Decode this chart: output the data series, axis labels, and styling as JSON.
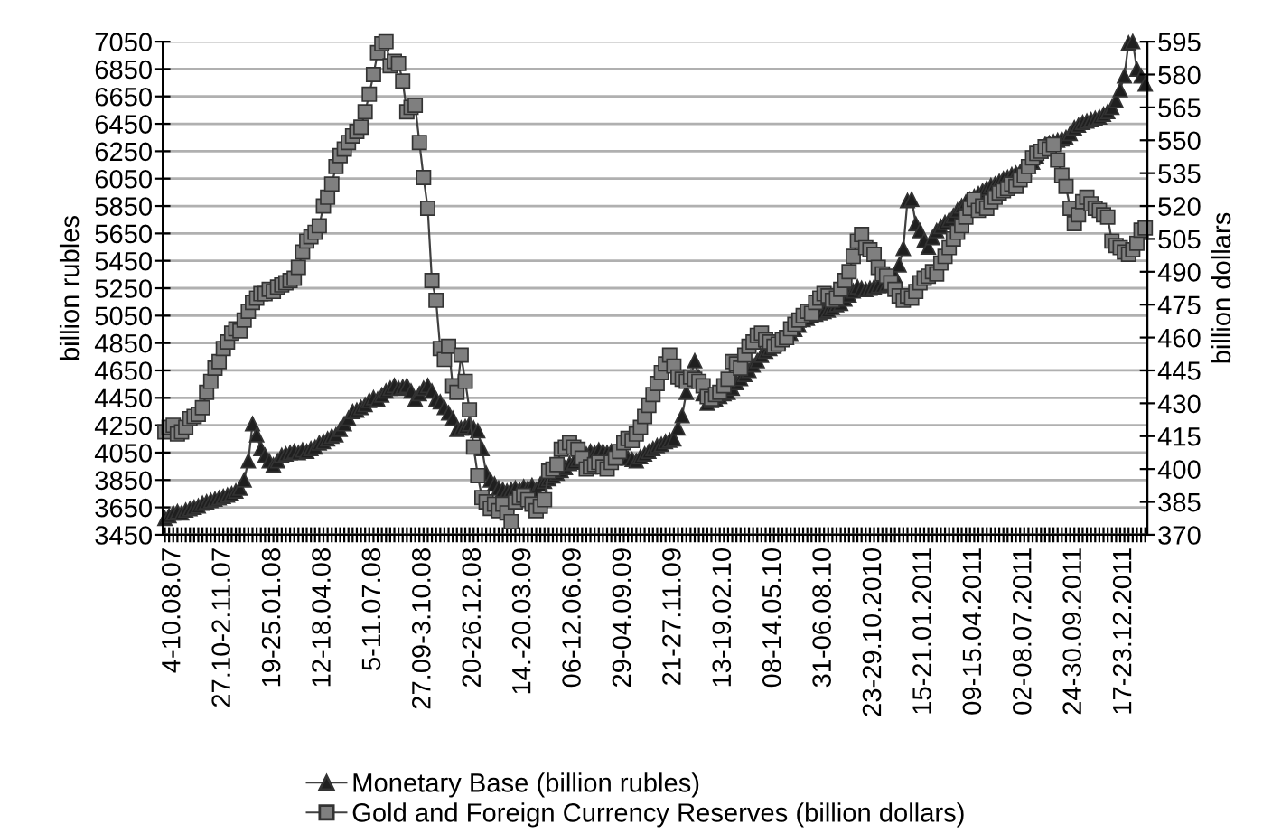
{
  "chart_data": {
    "type": "line",
    "ylabel": "billion rubles",
    "y2label": "billion dollars",
    "categories": [
      null,
      null,
      "4-10.08.07",
      null,
      null,
      null,
      null,
      null,
      null,
      null,
      null,
      null,
      null,
      null,
      "27.10-2.11.07",
      null,
      null,
      null,
      null,
      null,
      null,
      null,
      null,
      null,
      null,
      null,
      "19-25.01.08",
      null,
      null,
      null,
      null,
      null,
      null,
      null,
      null,
      null,
      null,
      null,
      "12-18.04.08",
      null,
      null,
      null,
      null,
      null,
      null,
      null,
      null,
      null,
      null,
      null,
      "5-11.07.08",
      null,
      null,
      null,
      null,
      null,
      null,
      null,
      null,
      null,
      null,
      null,
      "27.09-3.10.08",
      null,
      null,
      null,
      null,
      null,
      null,
      null,
      null,
      null,
      null,
      null,
      "20-26.12.08",
      null,
      null,
      null,
      null,
      null,
      null,
      null,
      null,
      null,
      null,
      null,
      "14.-20.03.09",
      null,
      null,
      null,
      null,
      null,
      null,
      null,
      null,
      null,
      null,
      null,
      "06-12.06.09",
      null,
      null,
      null,
      null,
      null,
      null,
      null,
      null,
      null,
      null,
      null,
      "29-04.09.09",
      null,
      null,
      null,
      null,
      null,
      null,
      null,
      null,
      null,
      null,
      null,
      "21-27.11.09",
      null,
      null,
      null,
      null,
      null,
      null,
      null,
      null,
      null,
      null,
      null,
      "13-19.02.10",
      null,
      null,
      null,
      null,
      null,
      null,
      null,
      null,
      null,
      null,
      null,
      "08-14.05.10",
      null,
      null,
      null,
      null,
      null,
      null,
      null,
      null,
      null,
      null,
      null,
      "31-06.08.10",
      null,
      null,
      null,
      null,
      null,
      null,
      null,
      null,
      null,
      null,
      null,
      "23-29.10.2010",
      null,
      null,
      null,
      null,
      null,
      null,
      null,
      null,
      null,
      null,
      null,
      "15-21.01.2011",
      null,
      null,
      null,
      null,
      null,
      null,
      null,
      null,
      null,
      null,
      null,
      "09-15.04.2011",
      null,
      null,
      null,
      null,
      null,
      null,
      null,
      null,
      null,
      null,
      null,
      "02-08.07.2011",
      null,
      null,
      null,
      null,
      null,
      null,
      null,
      null,
      null,
      null,
      null,
      "24-30.09.2011",
      null,
      null,
      null,
      null,
      null,
      null,
      null,
      null,
      null,
      null,
      null,
      "17-23.12.2011",
      null,
      null,
      null,
      null,
      null
    ],
    "series": [
      {
        "name": "Monetary Base (billion rubles)",
        "color": "#1f1f1f",
        "marker": "triangle",
        "axis": "y",
        "values": [
          3570,
          3590,
          3610,
          3620,
          3610,
          3630,
          3640,
          3650,
          3660,
          3680,
          3690,
          3700,
          3710,
          3720,
          3730,
          3740,
          3750,
          3770,
          3790,
          3850,
          3990,
          4260,
          4180,
          4080,
          4030,
          3990,
          3960,
          3990,
          4030,
          4040,
          4050,
          4060,
          4050,
          4070,
          4060,
          4080,
          4090,
          4120,
          4130,
          4150,
          4170,
          4180,
          4220,
          4260,
          4300,
          4350,
          4360,
          4380,
          4400,
          4430,
          4450,
          4440,
          4470,
          4500,
          4520,
          4540,
          4520,
          4530,
          4540,
          4500,
          4440,
          4480,
          4520,
          4540,
          4500,
          4440,
          4420,
          4380,
          4340,
          4300,
          4220,
          4230,
          4240,
          4260,
          4230,
          4210,
          4080,
          3900,
          3850,
          3820,
          3790,
          3780,
          3770,
          3780,
          3790,
          3780,
          3800,
          3790,
          3810,
          3780,
          3820,
          3840,
          3860,
          3880,
          3900,
          3920,
          3940,
          3970,
          3980,
          4000,
          4020,
          4040,
          4060,
          4050,
          4070,
          4060,
          4050,
          4060,
          4040,
          4030,
          4020,
          4010,
          4000,
          3990,
          4020,
          4040,
          4060,
          4080,
          4100,
          4110,
          4130,
          4140,
          4150,
          4230,
          4320,
          4490,
          4600,
          4720,
          4600,
          4480,
          4410,
          4430,
          4440,
          4460,
          4480,
          4490,
          4520,
          4560,
          4590,
          4620,
          4650,
          4690,
          4720,
          4760,
          4790,
          4810,
          4840,
          4860,
          4880,
          4890,
          4920,
          4950,
          4980,
          5020,
          5030,
          5050,
          5060,
          5070,
          5080,
          5090,
          5110,
          5130,
          5140,
          5170,
          5200,
          5230,
          5260,
          5250,
          5240,
          5250,
          5260,
          5270,
          5270,
          5280,
          5290,
          5340,
          5420,
          5540,
          5890,
          5900,
          5720,
          5670,
          5600,
          5550,
          5620,
          5670,
          5700,
          5730,
          5750,
          5780,
          5820,
          5850,
          5880,
          5900,
          5920,
          5940,
          5960,
          5980,
          6000,
          6010,
          6030,
          6050,
          6060,
          6080,
          6090,
          6100,
          6120,
          6140,
          6170,
          6210,
          6250,
          6300,
          6310,
          6320,
          6330,
          6340,
          6350,
          6380,
          6420,
          6440,
          6460,
          6470,
          6480,
          6490,
          6500,
          6520,
          6540,
          6570,
          6620,
          6700,
          6800,
          7040,
          7050,
          6850,
          6800,
          6740
        ]
      },
      {
        "name": "Gold and Foreign Currency Reserves (billion dollars)",
        "color": "#7f7f7f",
        "marker": "square",
        "axis": "y2",
        "values": [
          417,
          419,
          420,
          416,
          417,
          419,
          423,
          424,
          425,
          428,
          435,
          440,
          446,
          449,
          455,
          458,
          462,
          464,
          463,
          468,
          472,
          476,
          478,
          480,
          480,
          482,
          481,
          483,
          484,
          485,
          486,
          487,
          492,
          499,
          504,
          506,
          508,
          511,
          520,
          524,
          530,
          538,
          543,
          546,
          549,
          552,
          554,
          556,
          563,
          571,
          580,
          590,
          594,
          595,
          584,
          586,
          585,
          577,
          563,
          565,
          566,
          549,
          533,
          519,
          486,
          477,
          455,
          450,
          456,
          438,
          435,
          452,
          440,
          427,
          410,
          397,
          387,
          385,
          382,
          384,
          381,
          384,
          380,
          376,
          385,
          387,
          388,
          386,
          384,
          381,
          383,
          386,
          399,
          400,
          402,
          409,
          410,
          412,
          410,
          409,
          405,
          400,
          401,
          402,
          403,
          401,
          400,
          403,
          405,
          408,
          412,
          414,
          413,
          416,
          419,
          424,
          429,
          434,
          439,
          444,
          448,
          452,
          447,
          442,
          441,
          440,
          442,
          441,
          440,
          438,
          433,
          432,
          434,
          435,
          438,
          441,
          449,
          448,
          446,
          452,
          456,
          458,
          461,
          462,
          459,
          458,
          456,
          457,
          459,
          460,
          464,
          466,
          468,
          470,
          472,
          471,
          476,
          478,
          480,
          479,
          477,
          478,
          482,
          486,
          490,
          497,
          504,
          507,
          501,
          500,
          498,
          492,
          489,
          488,
          485,
          482,
          479,
          477,
          479,
          478,
          481,
          485,
          487,
          488,
          490,
          489,
          494,
          497,
          501,
          505,
          508,
          511,
          515,
          519,
          523,
          518,
          520,
          519,
          522,
          524,
          526,
          527,
          528,
          530,
          529,
          532,
          534,
          538,
          542,
          544,
          545,
          547,
          546,
          548,
          541,
          534,
          529,
          519,
          512,
          516,
          522,
          524,
          521,
          519,
          518,
          516,
          515,
          504,
          502,
          501,
          499,
          498,
          500,
          503,
          509,
          510
        ]
      }
    ],
    "ylim": [
      3450,
      7050
    ],
    "yticks": [
      3450,
      3650,
      3850,
      4050,
      4250,
      4450,
      4650,
      4850,
      5050,
      5250,
      5450,
      5650,
      5850,
      6050,
      6250,
      6450,
      6650,
      6850,
      7050
    ],
    "y2lim": [
      370,
      595
    ],
    "y2ticks": [
      370,
      385,
      400,
      415,
      430,
      445,
      460,
      475,
      490,
      505,
      520,
      535,
      550,
      565,
      580,
      595
    ],
    "grid": "y",
    "legend": "bottom",
    "line_style": "solid"
  }
}
